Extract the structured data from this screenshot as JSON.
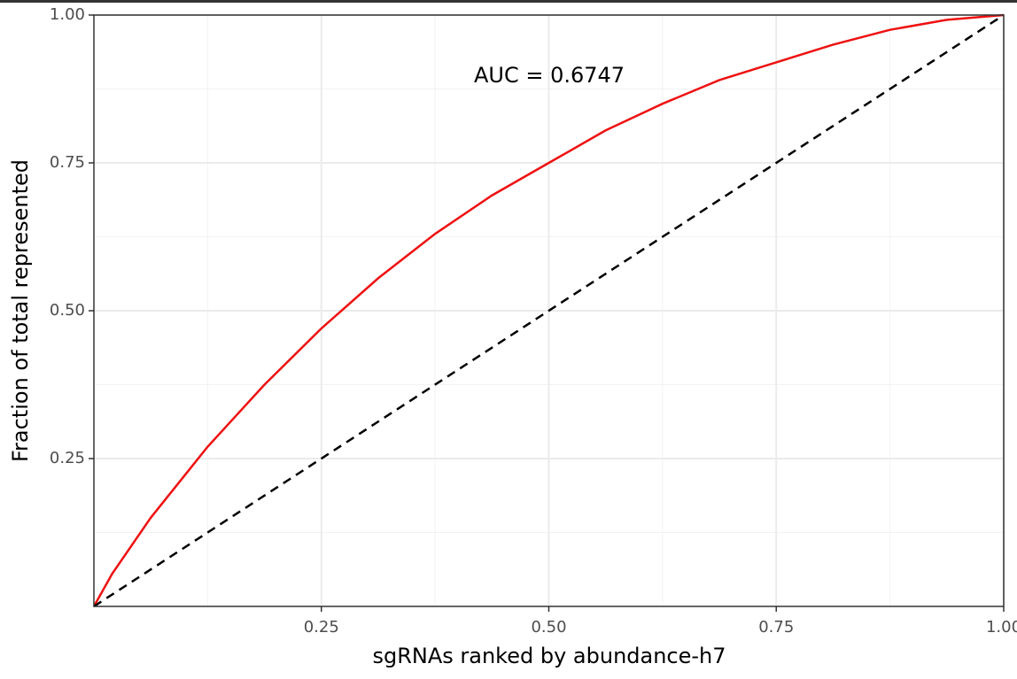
{
  "chart_data": {
    "type": "line",
    "annotation": "AUC = 0.6747",
    "xlabel": "sgRNAs ranked by abundance-h7",
    "ylabel": "Fraction of total represented",
    "xlim": [
      0,
      1
    ],
    "ylim": [
      0,
      1
    ],
    "xticks": [
      {
        "value": 0.25,
        "label": "0.25"
      },
      {
        "value": 0.5,
        "label": "0.50"
      },
      {
        "value": 0.75,
        "label": "0.75"
      },
      {
        "value": 1,
        "label": "1.00"
      }
    ],
    "yticks": [
      {
        "value": 0.25,
        "label": "0.25"
      },
      {
        "value": 0.5,
        "label": "0.50"
      },
      {
        "value": 0.75,
        "label": "0.75"
      },
      {
        "value": 1,
        "label": "1.00"
      }
    ],
    "grid": true,
    "series": [
      {
        "color": "#ee1111",
        "dashed": false,
        "x": [
          0,
          0.02,
          0.0625,
          0.125,
          0.1875,
          0.25,
          0.3125,
          0.375,
          0.4375,
          0.5,
          0.5625,
          0.625,
          0.6875,
          0.75,
          0.8125,
          0.875,
          0.9375,
          1
        ],
        "values": [
          0,
          0.055,
          0.15,
          0.27,
          0.375,
          0.47,
          0.555,
          0.63,
          0.695,
          0.75,
          0.805,
          0.85,
          0.89,
          0.92,
          0.95,
          0.975,
          0.992,
          1
        ]
      },
      {
        "color": "#000000",
        "dashed": true,
        "x": [
          0,
          1
        ],
        "values": [
          0,
          1
        ]
      }
    ]
  }
}
